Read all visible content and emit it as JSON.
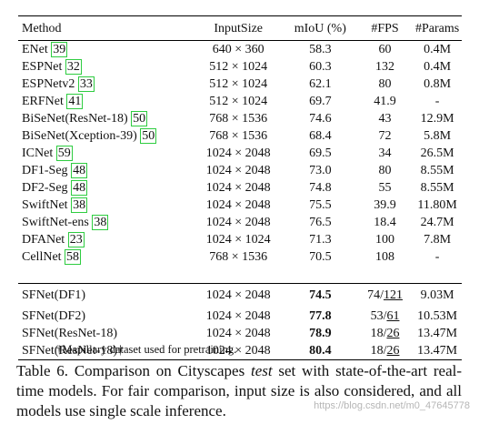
{
  "table": {
    "headers": [
      "Method",
      "InputSize",
      "mIoU (%)",
      "#FPS",
      "#Params"
    ],
    "rows": [
      {
        "method": "ENet ",
        "cite": "39",
        "input": "640 × 360",
        "miou": "58.3",
        "fps": "60",
        "params": "0.4M"
      },
      {
        "method": "ESPNet ",
        "cite": "32",
        "input": "512 × 1024",
        "miou": "60.3",
        "fps": "132",
        "params": "0.4M"
      },
      {
        "method": "ESPNetv2 ",
        "cite": "33",
        "input": "512 × 1024",
        "miou": "62.1",
        "fps": "80",
        "params": "0.8M"
      },
      {
        "method": "ERFNet ",
        "cite": "41",
        "input": "512 × 1024",
        "miou": "69.7",
        "fps": "41.9",
        "params": "-"
      },
      {
        "method": "BiSeNet(ResNet-18) ",
        "cite": "50",
        "input": "768 × 1536",
        "miou": "74.6",
        "fps": "43",
        "params": "12.9M"
      },
      {
        "method": "BiSeNet(Xception-39) ",
        "cite": "50",
        "input": "768 × 1536",
        "miou": "68.4",
        "fps": "72",
        "params": "5.8M"
      },
      {
        "method": "ICNet ",
        "cite": "59",
        "input": "1024 × 2048",
        "miou": "69.5",
        "fps": "34",
        "params": "26.5M"
      },
      {
        "method": "DF1-Seg ",
        "cite": "48",
        "input": "1024 × 2048",
        "miou": "73.0",
        "fps": "80",
        "params": "8.55M"
      },
      {
        "method": "DF2-Seg ",
        "cite": "48",
        "input": "1024 × 2048",
        "miou": "74.8",
        "fps": "55",
        "params": "8.55M"
      },
      {
        "method": "SwiftNet ",
        "cite": "38",
        "input": "1024 × 2048",
        "miou": "75.5",
        "fps": "39.9",
        "params": "11.80M"
      },
      {
        "method": "SwiftNet-ens ",
        "cite": "38",
        "input": "1024 × 2048",
        "miou": "76.5",
        "fps": "18.4",
        "params": "24.7M"
      },
      {
        "method": "DFANet ",
        "cite": "23",
        "input": "1024 × 1024",
        "miou": "71.3",
        "fps": "100",
        "params": "7.8M"
      },
      {
        "method": "CellNet ",
        "cite": "58",
        "input": "768 × 1536",
        "miou": "70.5",
        "fps": "108",
        "params": "-"
      }
    ],
    "sf_rows": [
      {
        "method": "SFNet(DF1)",
        "input": "1024 × 2048",
        "miou": "74.5",
        "fps_a": "74/",
        "fps_b": "121",
        "params": "9.03M"
      },
      {
        "method": "SFNet(DF2)",
        "input": "1024 × 2048",
        "miou": "77.8",
        "fps_a": "53/",
        "fps_b": "61",
        "params": "10.53M"
      },
      {
        "method": "SFNet(ResNet-18)",
        "input": "1024 × 2048",
        "miou": "78.9",
        "fps_a": "18/",
        "fps_b": "26",
        "params": "13.47M"
      },
      {
        "method": "SFNet(ResNet-18)†",
        "input": "1024 × 2048",
        "miou": "80.4",
        "fps_a": "18/",
        "fps_b": "26",
        "params": "13.47M"
      }
    ]
  },
  "footnote": "†Mapillary dataset used for pretraining.",
  "caption": {
    "part1": "Table 6. Comparison on Cityscapes ",
    "em": "test",
    "part2": " set with state-of-the-art real-time models. For fair comparison, input size is also considered, and all models use single scale inference."
  },
  "watermark": "https://blog.csdn.net/m0_47645778"
}
